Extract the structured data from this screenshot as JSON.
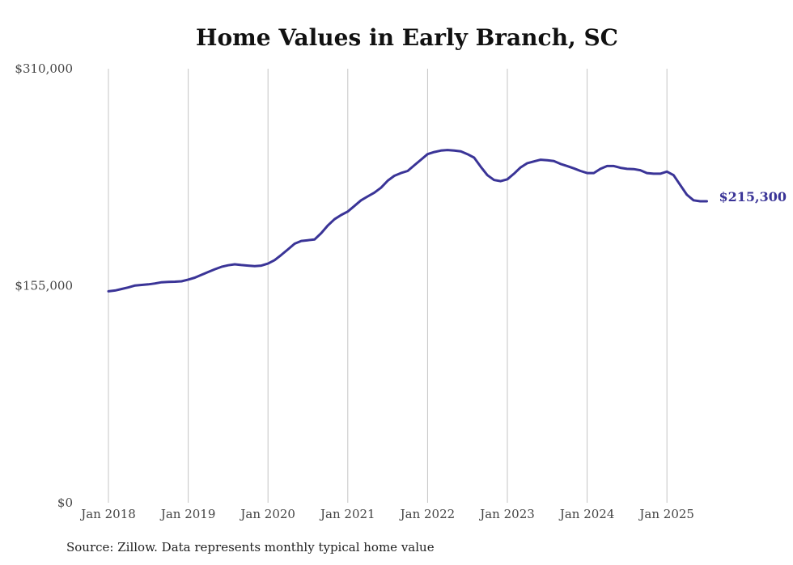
{
  "chart_data": {
    "type": "line",
    "title": "Home Values in Early Branch, SC",
    "source": "Source: Zillow. Data represents monthly typical home value",
    "ylim": [
      0,
      310000
    ],
    "y_tick_labels": [
      "$310,000",
      "$155,000",
      "$0"
    ],
    "y_tick_values": [
      310000,
      155000,
      0
    ],
    "x_tick_labels": [
      "Jan 2018",
      "Jan 2019",
      "Jan 2020",
      "Jan 2021",
      "Jan 2022",
      "Jan 2023",
      "Jan 2024",
      "Jan 2025"
    ],
    "grid": "vertical",
    "end_label": "$215,300",
    "line_color": "#3a3497",
    "series": [
      {
        "x": [
          "2018-01",
          "2018-02",
          "2018-03",
          "2018-04",
          "2018-05",
          "2018-06",
          "2018-07",
          "2018-08",
          "2018-09",
          "2018-10",
          "2018-11",
          "2018-12",
          "2019-01",
          "2019-02",
          "2019-03",
          "2019-04",
          "2019-05",
          "2019-06",
          "2019-07",
          "2019-08",
          "2019-09",
          "2019-10",
          "2019-11",
          "2019-12",
          "2020-01",
          "2020-02",
          "2020-03",
          "2020-04",
          "2020-05",
          "2020-06",
          "2020-07",
          "2020-08",
          "2020-09",
          "2020-10",
          "2020-11",
          "2020-12",
          "2021-01",
          "2021-02",
          "2021-03",
          "2021-04",
          "2021-05",
          "2021-06",
          "2021-07",
          "2021-08",
          "2021-09",
          "2021-10",
          "2021-11",
          "2021-12",
          "2022-01",
          "2022-02",
          "2022-03",
          "2022-04",
          "2022-05",
          "2022-06",
          "2022-07",
          "2022-08",
          "2022-09",
          "2022-10",
          "2022-11",
          "2022-12",
          "2023-01",
          "2023-02",
          "2023-03",
          "2023-04",
          "2023-05",
          "2023-06",
          "2023-07",
          "2023-08",
          "2023-09",
          "2023-10",
          "2023-11",
          "2023-12",
          "2024-01",
          "2024-02",
          "2024-03",
          "2024-04",
          "2024-05",
          "2024-06",
          "2024-07",
          "2024-08",
          "2024-09",
          "2024-10",
          "2024-11",
          "2024-12",
          "2025-01",
          "2025-02",
          "2025-03",
          "2025-04",
          "2025-05",
          "2025-06",
          "2025-07"
        ],
        "values": [
          151000,
          151600,
          152700,
          153800,
          155200,
          155600,
          156000,
          156600,
          157500,
          157700,
          157900,
          158200,
          159400,
          160800,
          162800,
          164800,
          166800,
          168500,
          169600,
          170300,
          169800,
          169400,
          169000,
          169400,
          170800,
          173300,
          177000,
          181000,
          185000,
          187000,
          187500,
          188000,
          192500,
          198000,
          202500,
          205500,
          208000,
          212000,
          216000,
          218800,
          221500,
          225000,
          230000,
          233500,
          235500,
          237000,
          241000,
          245000,
          249000,
          250500,
          251500,
          251900,
          251500,
          251000,
          249000,
          246500,
          240000,
          234000,
          230500,
          229700,
          231000,
          235000,
          239500,
          242500,
          243800,
          245000,
          244600,
          244000,
          242000,
          240500,
          238800,
          237000,
          235500,
          235500,
          238500,
          240500,
          240500,
          239200,
          238500,
          238300,
          237500,
          235500,
          235000,
          235000,
          236500,
          234000,
          227000,
          220000,
          216000,
          215300,
          215300
        ]
      }
    ]
  }
}
